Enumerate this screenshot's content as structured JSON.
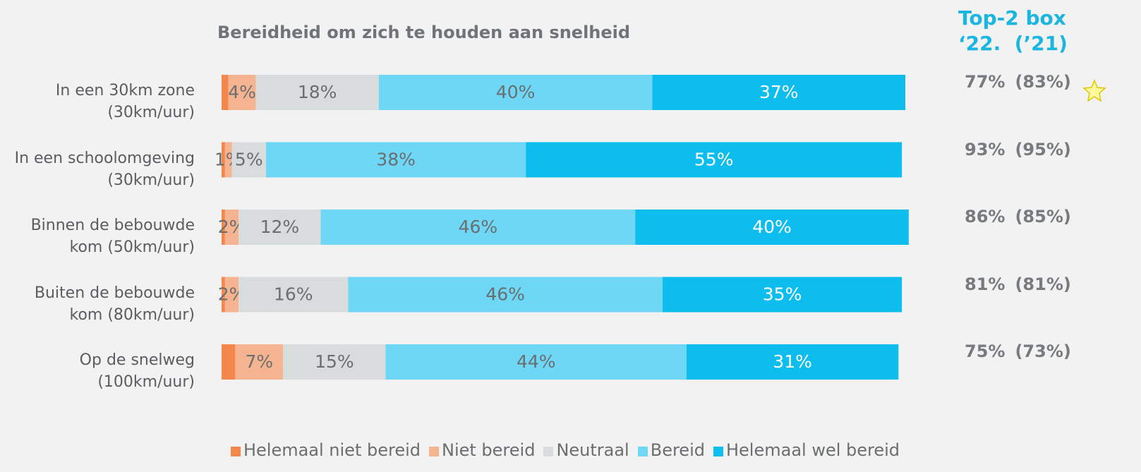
{
  "chart_data": {
    "type": "stacked_bar_horizontal",
    "title": "Bereidheid om zich te houden aan snelheid",
    "categories": [
      "In een 30km zone\n(30km/uur)",
      "In een schoolomgeving\n(30km/uur)",
      "Binnen de bebouwde\nkom (50km/uur)",
      "Buiten de bebouwde\nkom (80km/uur)",
      "Op de snelweg\n(100km/uur)"
    ],
    "xlim": [
      0,
      100
    ],
    "series": [
      {
        "name": "Helemaal niet bereid",
        "color": "#f4874b",
        "values": [
          1,
          0.5,
          0.5,
          0.5,
          2
        ]
      },
      {
        "name": "Niet bereid",
        "color": "#f6b38f",
        "label_color": "#6b6e70",
        "values": [
          4,
          1,
          2,
          2,
          7
        ],
        "value_labels": [
          "4%",
          "1%",
          "2%",
          "2%",
          "7%"
        ]
      },
      {
        "name": "Neutraal",
        "color": "#d9dcdc",
        "label_color": "#6b6e70",
        "values": [
          18,
          5,
          12,
          16,
          15
        ],
        "value_labels": [
          "18%",
          "5%",
          "12%",
          "16%",
          "15%"
        ]
      },
      {
        "name": "Bereid",
        "color": "#6dd7f5",
        "label_color": "#6b6e70",
        "values": [
          40,
          38,
          46,
          46,
          44
        ],
        "value_labels": [
          "40%",
          "38%",
          "46%",
          "46%",
          "44%"
        ]
      },
      {
        "name": "Helemaal wel bereid",
        "color": "#0dbdee",
        "label_color": "#ffffff",
        "values": [
          37,
          55,
          40,
          35,
          31
        ],
        "value_labels": [
          "37%",
          "55%",
          "40%",
          "35%",
          "31%"
        ]
      }
    ],
    "top2_title": "Top-2 box\n‘22.  (’21)",
    "top2": [
      "77%",
      "93%",
      "86%",
      "81%",
      "75%"
    ],
    "top2_prev": [
      "(83%)",
      "(95%)",
      "(85%)",
      "(81%)",
      "(73%)"
    ]
  }
}
